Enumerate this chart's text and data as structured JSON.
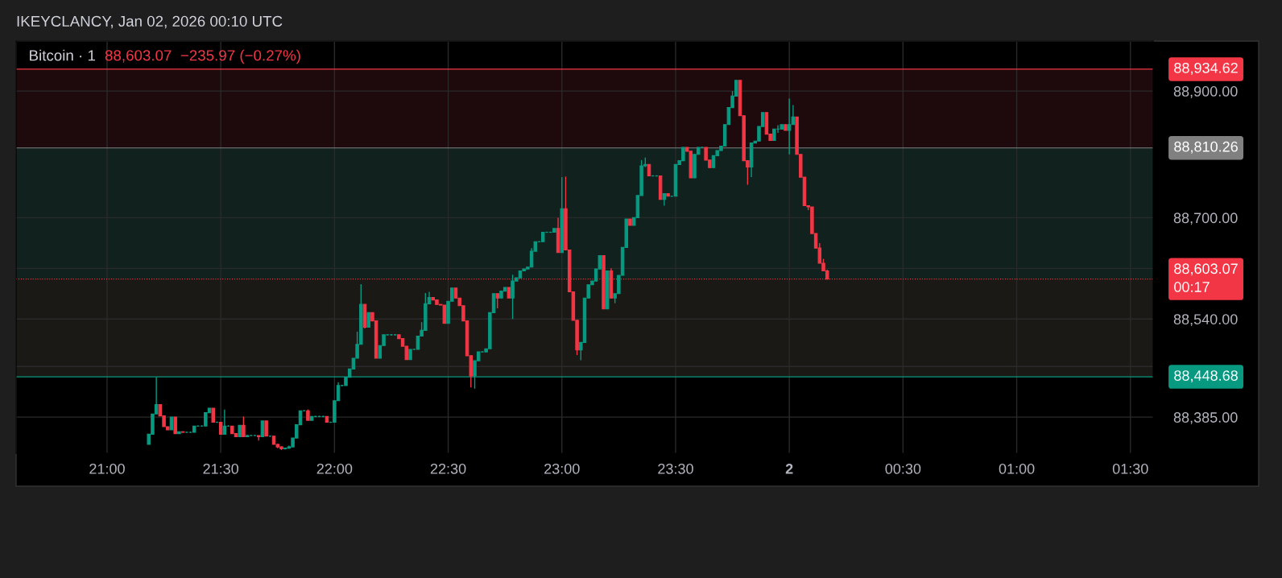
{
  "chart_data": {
    "type": "candlestick",
    "title": "Bitcoin · 1",
    "subtitle": "88,603.07  −235.97 (−0.27%)",
    "annotations": [
      "IKEYCLANCY, Jan 02, 2026 00:10 UTC"
    ],
    "colors": [
      "#089981",
      "#089981",
      "#089981",
      "#f23645",
      "#f23645",
      "#f23645",
      "#089981",
      "#f23645",
      "#089981",
      "#f23645",
      "#089981",
      "#089981",
      "#089981",
      "#089981",
      "#089981",
      "#089981",
      "#089981",
      "#f23645",
      "#089981",
      "#f23645",
      "#089981",
      "#089981",
      "#f23645",
      "#f23645",
      "#089981",
      "#f23645",
      "#089981",
      "#089981",
      "#089981",
      "#f23645",
      "#089981",
      "#f23645",
      "#089981",
      "#f23645",
      "#f23645",
      "#f23645",
      "#089981",
      "#089981",
      "#089981",
      "#089981",
      "#089981",
      "#089981",
      "#f23645",
      "#089981",
      "#089981",
      "#089981",
      "#089981",
      "#f23645",
      "#089981",
      "#089981",
      "#089981",
      "#089981",
      "#089981",
      "#089981",
      "#089981",
      "#089981",
      "#089981",
      "#f23645",
      "#089981",
      "#f23645",
      "#f23645",
      "#089981",
      "#089981",
      "#089981",
      "#089981",
      "#089981",
      "#f23645",
      "#f23645",
      "#f23645",
      "#089981",
      "#089981",
      "#089981",
      "#089981",
      "#089981",
      "#089981",
      "#f23645",
      "#f23645",
      "#f23645",
      "#f23645",
      "#089981",
      "#089981",
      "#f23645",
      "#f23645",
      "#f23645",
      "#f23645",
      "#f23645",
      "#089981",
      "#089981",
      "#089981",
      "#089981",
      "#089981",
      "#089981",
      "#f23645",
      "#089981",
      "#089981",
      "#f23645",
      "#089981",
      "#089981",
      "#089981",
      "#089981",
      "#089981",
      "#089981",
      "#089981",
      "#089981",
      "#089981",
      "#089981",
      "#089981",
      "#089981",
      "#f23645",
      "#089981",
      "#f23645",
      "#f23645",
      "#f23645",
      "#f23645",
      "#089981",
      "#089981",
      "#089981",
      "#089981",
      "#089981",
      "#089981",
      "#f23645",
      "#089981",
      "#f23645",
      "#089981",
      "#089981",
      "#089981",
      "#089981",
      "#f23645",
      "#089981",
      "#089981",
      "#089981",
      "#089981",
      "#f23645",
      "#089981",
      "#089981",
      "#f23645",
      "#089981",
      "#f23645",
      "#089981",
      "#089981",
      "#089981",
      "#089981",
      "#f23645",
      "#f23645",
      "#089981",
      "#089981",
      "#089981",
      "#f23645",
      "#f23645",
      "#089981",
      "#089981",
      "#089981",
      "#089981",
      "#089981",
      "#089981",
      "#089981",
      "#f23645",
      "#f23645",
      "#f23645",
      "#089981",
      "#089981",
      "#089981",
      "#089981",
      "#f23645",
      "#f23645",
      "#089981",
      "#089981",
      "#089981",
      "#f23645",
      "#089981",
      "#089981",
      "#f23645",
      "#f23645",
      "#f23645",
      "#f23645",
      "#f23645",
      "#f23645",
      "#f23645",
      "#f23645",
      "#f23645"
    ],
    "x": [
      "2026-01-01T21:11",
      "2026-01-01T21:12",
      "2026-01-01T21:13",
      "2026-01-01T21:14",
      "2026-01-01T21:15",
      "2026-01-01T21:16",
      "2026-01-01T21:17",
      "2026-01-01T21:18",
      "2026-01-01T21:19",
      "2026-01-01T21:20",
      "2026-01-01T21:21",
      "2026-01-01T21:22",
      "2026-01-01T21:23",
      "2026-01-01T21:24",
      "2026-01-01T21:25",
      "2026-01-01T21:26",
      "2026-01-01T21:27",
      "2026-01-01T21:28",
      "2026-01-01T21:29",
      "2026-01-01T21:30",
      "2026-01-01T21:31",
      "2026-01-01T21:32",
      "2026-01-01T21:33",
      "2026-01-01T21:34",
      "2026-01-01T21:35",
      "2026-01-01T21:36",
      "2026-01-01T21:37",
      "2026-01-01T21:38",
      "2026-01-01T21:39",
      "2026-01-01T21:40",
      "2026-01-01T21:41",
      "2026-01-01T21:42",
      "2026-01-01T21:43",
      "2026-01-01T21:44",
      "2026-01-01T21:45",
      "2026-01-01T21:46",
      "2026-01-01T21:47",
      "2026-01-01T21:48",
      "2026-01-01T21:49",
      "2026-01-01T21:50",
      "2026-01-01T21:51",
      "2026-01-01T21:52",
      "2026-01-01T21:53",
      "2026-01-01T21:54",
      "2026-01-01T21:55",
      "2026-01-01T21:56",
      "2026-01-01T21:57",
      "2026-01-01T21:58",
      "2026-01-01T21:59",
      "2026-01-01T22:00",
      "2026-01-01T22:01",
      "2026-01-01T22:02",
      "2026-01-01T22:03",
      "2026-01-01T22:04",
      "2026-01-01T22:05",
      "2026-01-01T22:06",
      "2026-01-01T22:07",
      "2026-01-01T22:08",
      "2026-01-01T22:09",
      "2026-01-01T22:10",
      "2026-01-01T22:11",
      "2026-01-01T22:12",
      "2026-01-01T22:13",
      "2026-01-01T22:14",
      "2026-01-01T22:15",
      "2026-01-01T22:16",
      "2026-01-01T22:17",
      "2026-01-01T22:18",
      "2026-01-01T22:19",
      "2026-01-01T22:20",
      "2026-01-01T22:21",
      "2026-01-01T22:22",
      "2026-01-01T22:23",
      "2026-01-01T22:24",
      "2026-01-01T22:25",
      "2026-01-01T22:26",
      "2026-01-01T22:27",
      "2026-01-01T22:28",
      "2026-01-01T22:29",
      "2026-01-01T22:30",
      "2026-01-01T22:31",
      "2026-01-01T22:32",
      "2026-01-01T22:33",
      "2026-01-01T22:34",
      "2026-01-01T22:35",
      "2026-01-01T22:36",
      "2026-01-01T22:37",
      "2026-01-01T22:38",
      "2026-01-01T22:39",
      "2026-01-01T22:40",
      "2026-01-01T22:41",
      "2026-01-01T22:42",
      "2026-01-01T22:43",
      "2026-01-01T22:44",
      "2026-01-01T22:45",
      "2026-01-01T22:46",
      "2026-01-01T22:47",
      "2026-01-01T22:48",
      "2026-01-01T22:49",
      "2026-01-01T22:50",
      "2026-01-01T22:51",
      "2026-01-01T22:52",
      "2026-01-01T22:53",
      "2026-01-01T22:54",
      "2026-01-01T22:55",
      "2026-01-01T22:56",
      "2026-01-01T22:57",
      "2026-01-01T22:58",
      "2026-01-01T22:59",
      "2026-01-01T23:00",
      "2026-01-01T23:01",
      "2026-01-01T23:02",
      "2026-01-01T23:03",
      "2026-01-01T23:04",
      "2026-01-01T23:05",
      "2026-01-01T23:06",
      "2026-01-01T23:07",
      "2026-01-01T23:08",
      "2026-01-01T23:09",
      "2026-01-01T23:10",
      "2026-01-01T23:11",
      "2026-01-01T23:12",
      "2026-01-01T23:13",
      "2026-01-01T23:14",
      "2026-01-01T23:15",
      "2026-01-01T23:16",
      "2026-01-01T23:17",
      "2026-01-01T23:18",
      "2026-01-01T23:19",
      "2026-01-01T23:20",
      "2026-01-01T23:21",
      "2026-01-01T23:22",
      "2026-01-01T23:23",
      "2026-01-01T23:24",
      "2026-01-01T23:25",
      "2026-01-01T23:26",
      "2026-01-01T23:27",
      "2026-01-01T23:28",
      "2026-01-01T23:29",
      "2026-01-01T23:30",
      "2026-01-01T23:31",
      "2026-01-01T23:32",
      "2026-01-01T23:33",
      "2026-01-01T23:34",
      "2026-01-01T23:35",
      "2026-01-01T23:36",
      "2026-01-01T23:37",
      "2026-01-01T23:38",
      "2026-01-01T23:39",
      "2026-01-01T23:40",
      "2026-01-01T23:41",
      "2026-01-01T23:42",
      "2026-01-01T23:43",
      "2026-01-01T23:44",
      "2026-01-01T23:45",
      "2026-01-01T23:46",
      "2026-01-01T23:47",
      "2026-01-01T23:48",
      "2026-01-01T23:49",
      "2026-01-01T23:50",
      "2026-01-01T23:51",
      "2026-01-01T23:52",
      "2026-01-01T23:53",
      "2026-01-01T23:54",
      "2026-01-01T23:55",
      "2026-01-01T23:56",
      "2026-01-01T23:57",
      "2026-01-01T23:58",
      "2026-01-01T23:59",
      "2026-01-02T00:00",
      "2026-01-02T00:01",
      "2026-01-02T00:02",
      "2026-01-02T00:03",
      "2026-01-02T00:04",
      "2026-01-02T00:05",
      "2026-01-02T00:06",
      "2026-01-02T00:07",
      "2026-01-02T00:08",
      "2026-01-02T00:09",
      "2026-01-02T00:10"
    ],
    "ohlc": [
      [
        88342,
        88358,
        88342,
        88358
      ],
      [
        88358,
        88390,
        88358,
        88390
      ],
      [
        88390,
        88448,
        88390,
        88405
      ],
      [
        88405,
        88405,
        88387,
        88387
      ],
      [
        88387,
        88387,
        88370,
        88370
      ],
      [
        88370,
        88370,
        88365,
        88365
      ],
      [
        88365,
        88385,
        88365,
        88385
      ],
      [
        88385,
        88385,
        88359,
        88359
      ],
      [
        88359,
        88362,
        88359,
        88362
      ],
      [
        88362,
        88362,
        88361,
        88361
      ],
      [
        88361,
        88362,
        88360,
        88361
      ],
      [
        88361,
        88362,
        88360,
        88361
      ],
      [
        88361,
        88371,
        88361,
        88371
      ],
      [
        88371,
        88372,
        88370,
        88371
      ],
      [
        88371,
        88372,
        88370,
        88371
      ],
      [
        88371,
        88392,
        88371,
        88392
      ],
      [
        88392,
        88399,
        88392,
        88399
      ],
      [
        88399,
        88399,
        88377,
        88377
      ],
      [
        88377,
        88378,
        88376,
        88377
      ],
      [
        88377,
        88377,
        88358,
        88358
      ],
      [
        88358,
        88397,
        88358,
        88371
      ],
      [
        88371,
        88372,
        88370,
        88371
      ],
      [
        88371,
        88371,
        88359,
        88359
      ],
      [
        88359,
        88359,
        88354,
        88354
      ],
      [
        88354,
        88372,
        88354,
        88372
      ],
      [
        88372,
        88386,
        88354,
        88354
      ],
      [
        88354,
        88357,
        88354,
        88356
      ],
      [
        88356,
        88357,
        88355,
        88356
      ],
      [
        88356,
        88357,
        88355,
        88356
      ],
      [
        88356,
        88356,
        88348,
        88354
      ],
      [
        88354,
        88379,
        88354,
        88379
      ],
      [
        88379,
        88379,
        88355,
        88355
      ],
      [
        88355,
        88356,
        88354,
        88355
      ],
      [
        88355,
        88355,
        88342,
        88342
      ],
      [
        88342,
        88343,
        88336,
        88338
      ],
      [
        88338,
        88339,
        88333,
        88335
      ],
      [
        88335,
        88337,
        88334,
        88336
      ],
      [
        88336,
        88340,
        88335,
        88338
      ],
      [
        88338,
        88352,
        88338,
        88352
      ],
      [
        88352,
        88373,
        88352,
        88373
      ],
      [
        88373,
        88395,
        88373,
        88395
      ],
      [
        88395,
        88396,
        88394,
        88395
      ],
      [
        88395,
        88397,
        88380,
        88380
      ],
      [
        88380,
        88386,
        88380,
        88386
      ],
      [
        88386,
        88387,
        88385,
        88386
      ],
      [
        88386,
        88387,
        88385,
        88386
      ],
      [
        88386,
        88387,
        88385,
        88386
      ],
      [
        88386,
        88386,
        88377,
        88377
      ],
      [
        88377,
        88378,
        88376,
        88377
      ],
      [
        88377,
        88411,
        88377,
        88411
      ],
      [
        88411,
        88440,
        88411,
        88435
      ],
      [
        88435,
        88436,
        88434,
        88435
      ],
      [
        88435,
        88448,
        88435,
        88448
      ],
      [
        88448,
        88461,
        88448,
        88461
      ],
      [
        88461,
        88478,
        88461,
        88478
      ],
      [
        88478,
        88520,
        88478,
        88500
      ],
      [
        88500,
        88595,
        88500,
        88563
      ],
      [
        88563,
        88563,
        88525,
        88527
      ],
      [
        88527,
        88550,
        88527,
        88550
      ],
      [
        88550,
        88550,
        88537,
        88537
      ],
      [
        88537,
        88537,
        88478,
        88478
      ],
      [
        88478,
        88498,
        88478,
        88498
      ],
      [
        88498,
        88515,
        88498,
        88515
      ],
      [
        88515,
        88516,
        88514,
        88515
      ],
      [
        88515,
        88516,
        88514,
        88515
      ],
      [
        88515,
        88516,
        88514,
        88515
      ],
      [
        88515,
        88515,
        88509,
        88509
      ],
      [
        88509,
        88509,
        88497,
        88497
      ],
      [
        88497,
        88497,
        88476,
        88476
      ],
      [
        88476,
        88492,
        88476,
        88492
      ],
      [
        88492,
        88493,
        88491,
        88492
      ],
      [
        88492,
        88513,
        88492,
        88513
      ],
      [
        88513,
        88535,
        88513,
        88522
      ],
      [
        88522,
        88581,
        88522,
        88564
      ],
      [
        88564,
        88583,
        88564,
        88574
      ],
      [
        88574,
        88574,
        88570,
        88570
      ],
      [
        88570,
        88570,
        88563,
        88563
      ],
      [
        88563,
        88563,
        88562,
        88562
      ],
      [
        88562,
        88562,
        88533,
        88533
      ],
      [
        88533,
        88568,
        88533,
        88568
      ],
      [
        88568,
        88589,
        88568,
        88589
      ],
      [
        88589,
        88589,
        88573,
        88573
      ],
      [
        88573,
        88573,
        88561,
        88561
      ],
      [
        88561,
        88561,
        88537,
        88537
      ],
      [
        88537,
        88537,
        88482,
        88482
      ],
      [
        88482,
        88482,
        88432,
        88450
      ],
      [
        88450,
        88474,
        88430,
        88474
      ],
      [
        88474,
        88488,
        88474,
        88488
      ],
      [
        88488,
        88489,
        88487,
        88488
      ],
      [
        88488,
        88493,
        88488,
        88493
      ],
      [
        88493,
        88550,
        88493,
        88550
      ],
      [
        88550,
        88580,
        88550,
        88580
      ],
      [
        88580,
        88580,
        88557,
        88573
      ],
      [
        88573,
        88584,
        88573,
        88584
      ],
      [
        88584,
        88590,
        88584,
        88590
      ],
      [
        88590,
        88590,
        88573,
        88573
      ],
      [
        88573,
        88610,
        88540,
        88600
      ],
      [
        88600,
        88605,
        88600,
        88605
      ],
      [
        88605,
        88616,
        88605,
        88616
      ],
      [
        88616,
        88619,
        88616,
        88619
      ],
      [
        88619,
        88622,
        88619,
        88622
      ],
      [
        88622,
        88652,
        88622,
        88647
      ],
      [
        88647,
        88662,
        88647,
        88662
      ],
      [
        88662,
        88663,
        88661,
        88662
      ],
      [
        88662,
        88677,
        88662,
        88677
      ],
      [
        88677,
        88678,
        88676,
        88677
      ],
      [
        88677,
        88678,
        88676,
        88677
      ],
      [
        88677,
        88683,
        88677,
        88683
      ],
      [
        88683,
        88700,
        88645,
        88645
      ],
      [
        88645,
        88764,
        88645,
        88714
      ],
      [
        88714,
        88765,
        88649,
        88649
      ],
      [
        88649,
        88649,
        88583,
        88583
      ],
      [
        88583,
        88583,
        88538,
        88538
      ],
      [
        88538,
        88538,
        88483,
        88491
      ],
      [
        88491,
        88503,
        88475,
        88503
      ],
      [
        88503,
        88573,
        88503,
        88573
      ],
      [
        88573,
        88594,
        88573,
        88594
      ],
      [
        88594,
        88600,
        88594,
        88600
      ],
      [
        88600,
        88619,
        88600,
        88619
      ],
      [
        88619,
        88640,
        88619,
        88640
      ],
      [
        88640,
        88640,
        88556,
        88556
      ],
      [
        88556,
        88616,
        88556,
        88616
      ],
      [
        88616,
        88620,
        88573,
        88573
      ],
      [
        88573,
        88580,
        88565,
        88580
      ],
      [
        88580,
        88609,
        88580,
        88609
      ],
      [
        88609,
        88653,
        88609,
        88653
      ],
      [
        88653,
        88698,
        88653,
        88698
      ],
      [
        88698,
        88698,
        88688,
        88688
      ],
      [
        88688,
        88700,
        88688,
        88700
      ],
      [
        88700,
        88735,
        88700,
        88735
      ],
      [
        88735,
        88791,
        88735,
        88782
      ],
      [
        88782,
        88795,
        88780,
        88784
      ],
      [
        88784,
        88784,
        88766,
        88766
      ],
      [
        88766,
        88767,
        88765,
        88766
      ],
      [
        88766,
        88767,
        88765,
        88766
      ],
      [
        88766,
        88766,
        88729,
        88729
      ],
      [
        88729,
        88738,
        88719,
        88738
      ],
      [
        88738,
        88738,
        88734,
        88734
      ],
      [
        88734,
        88735,
        88733,
        88734
      ],
      [
        88734,
        88784,
        88734,
        88784
      ],
      [
        88784,
        88790,
        88784,
        88790
      ],
      [
        88790,
        88811,
        88790,
        88811
      ],
      [
        88811,
        88811,
        88805,
        88805
      ],
      [
        88805,
        88805,
        88763,
        88763
      ],
      [
        88763,
        88800,
        88763,
        88800
      ],
      [
        88800,
        88811,
        88800,
        88811
      ],
      [
        88811,
        88812,
        88810,
        88811
      ],
      [
        88811,
        88811,
        88791,
        88791
      ],
      [
        88791,
        88791,
        88779,
        88779
      ],
      [
        88779,
        88798,
        88779,
        88798
      ],
      [
        88798,
        88806,
        88798,
        88806
      ],
      [
        88806,
        88813,
        88806,
        88813
      ],
      [
        88813,
        88847,
        88813,
        88847
      ],
      [
        88847,
        88874,
        88847,
        88874
      ],
      [
        88874,
        88900,
        88874,
        88892
      ],
      [
        88892,
        88917,
        88892,
        88917
      ],
      [
        88917,
        88917,
        88861,
        88861
      ],
      [
        88861,
        88861,
        88790,
        88790
      ],
      [
        88790,
        88790,
        88752,
        88780
      ],
      [
        88780,
        88818,
        88764,
        88818
      ],
      [
        88818,
        88821,
        88818,
        88821
      ],
      [
        88821,
        88844,
        88821,
        88844
      ],
      [
        88844,
        88866,
        88844,
        88866
      ],
      [
        88866,
        88866,
        88832,
        88832
      ],
      [
        88832,
        88832,
        88822,
        88822
      ],
      [
        88822,
        88840,
        88822,
        88840
      ],
      [
        88840,
        88846,
        88834,
        88840
      ],
      [
        88840,
        88847,
        88840,
        88847
      ],
      [
        88847,
        88847,
        88838,
        88838
      ],
      [
        88838,
        88888,
        88800,
        88847
      ],
      [
        88847,
        88878,
        88847,
        88859
      ],
      [
        88859,
        88859,
        88800,
        88800
      ],
      [
        88800,
        88800,
        88764,
        88764
      ],
      [
        88764,
        88764,
        88719,
        88719
      ],
      [
        88719,
        88719,
        88712,
        88717
      ],
      [
        88717,
        88717,
        88675,
        88675
      ],
      [
        88675,
        88675,
        88652,
        88652
      ],
      [
        88652,
        88660,
        88628,
        88628
      ],
      [
        88628,
        88635,
        88616,
        88616
      ],
      [
        88616,
        88618,
        88603.07,
        88603.07
      ]
    ],
    "xlim": [
      "2026-01-01T20:36",
      "2026-01-02T01:36"
    ],
    "xticks": [
      {
        "value": "2026-01-01T21:00",
        "label": "21:00"
      },
      {
        "value": "2026-01-01T21:30",
        "label": "21:30"
      },
      {
        "value": "2026-01-01T22:00",
        "label": "22:00"
      },
      {
        "value": "2026-01-01T22:30",
        "label": "22:30"
      },
      {
        "value": "2026-01-01T23:00",
        "label": "23:00"
      },
      {
        "value": "2026-01-01T23:30",
        "label": "23:30"
      },
      {
        "value": "2026-01-02T00:00",
        "label": "2"
      },
      {
        "value": "2026-01-02T00:30",
        "label": "00:30"
      },
      {
        "value": "2026-01-02T01:00",
        "label": "01:00"
      },
      {
        "value": "2026-01-02T01:30",
        "label": "01:30"
      }
    ],
    "ylim": [
      88328,
      88979
    ],
    "yticks": [
      {
        "value": 88385,
        "label": "88,385.00"
      },
      {
        "value": 88465,
        "label": null
      },
      {
        "value": 88540,
        "label": "88,540.00"
      },
      {
        "value": 88620,
        "label": null
      },
      {
        "value": 88700,
        "label": "88,700.00"
      },
      {
        "value": 88900,
        "label": "88,900.00"
      }
    ],
    "grid": true,
    "bands": [
      {
        "axis": "y",
        "from": 88810.26,
        "to": 88934.62,
        "color": "#1e0a0c"
      },
      {
        "axis": "y",
        "from": 88603.07,
        "to": 88810.26,
        "color": "#10211e"
      },
      {
        "axis": "y",
        "from": 88448.68,
        "to": 88603.07,
        "color": "#1a1915"
      }
    ],
    "ref_lines": [
      {
        "axis": "y",
        "value": 88934.62,
        "label": "88,934.62",
        "color": "#f23645"
      },
      {
        "axis": "y",
        "value": 88810.26,
        "label": "88,810.26",
        "color": "#808080"
      },
      {
        "axis": "y",
        "value": 88603.07,
        "label": "88,603.07\n00:17",
        "color": "#f23645",
        "line_style": "dotted"
      },
      {
        "axis": "y",
        "value": 88448.68,
        "label": "88,448.68",
        "color": "#089981"
      }
    ]
  }
}
